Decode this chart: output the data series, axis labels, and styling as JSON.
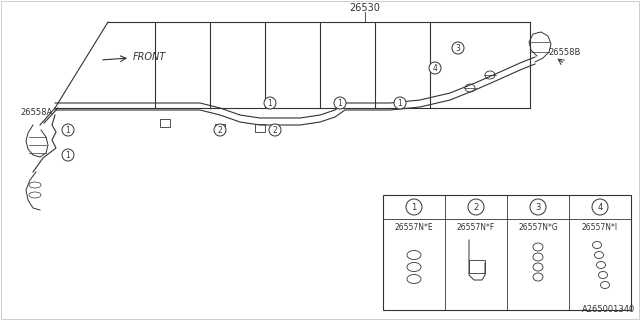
{
  "title": "",
  "bg_color": "#ffffff",
  "line_color": "#333333",
  "part_number_main": "26530",
  "part_26558A": "26558A",
  "part_26558B": "26558B",
  "legend_parts": [
    {
      "num": "1",
      "code": "26557N*E"
    },
    {
      "num": "2",
      "code": "26557N*F"
    },
    {
      "num": "3",
      "code": "26557N*G"
    },
    {
      "num": "4",
      "code": "26557N*I"
    }
  ],
  "footer": "A265001340",
  "front_label": "FRONT",
  "figsize": [
    6.4,
    3.2
  ],
  "dpi": 100
}
